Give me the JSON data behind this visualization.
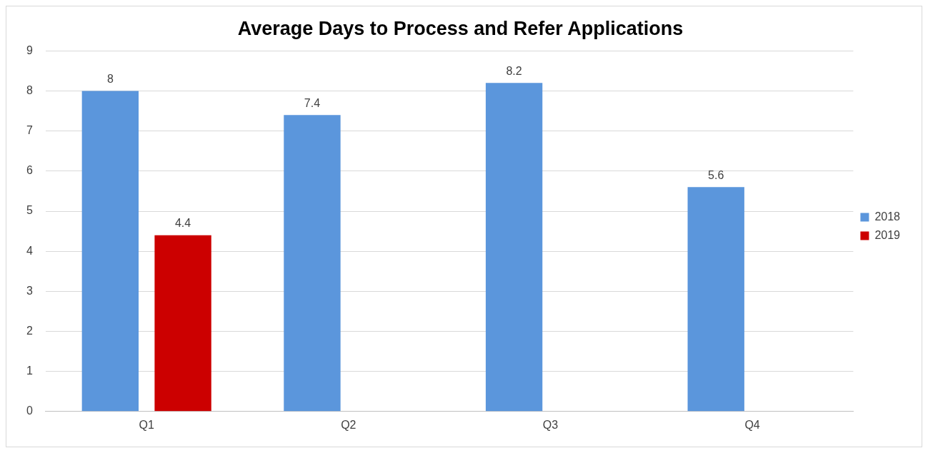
{
  "chart_data": {
    "type": "bar",
    "title": "Average Days to Process and Refer Applications",
    "categories": [
      "Q1",
      "Q2",
      "Q3",
      "Q4"
    ],
    "series": [
      {
        "name": "2018",
        "color": "#5b96dc",
        "values": [
          8,
          7.4,
          8.2,
          5.6
        ]
      },
      {
        "name": "2019",
        "color": "#cc0000",
        "values": [
          4.4,
          null,
          null,
          null
        ]
      }
    ],
    "ylim": [
      0,
      9
    ],
    "yticks": [
      0,
      1,
      2,
      3,
      4,
      5,
      6,
      7,
      8,
      9
    ],
    "grid": "y",
    "legend": "right",
    "data_labels": true
  }
}
